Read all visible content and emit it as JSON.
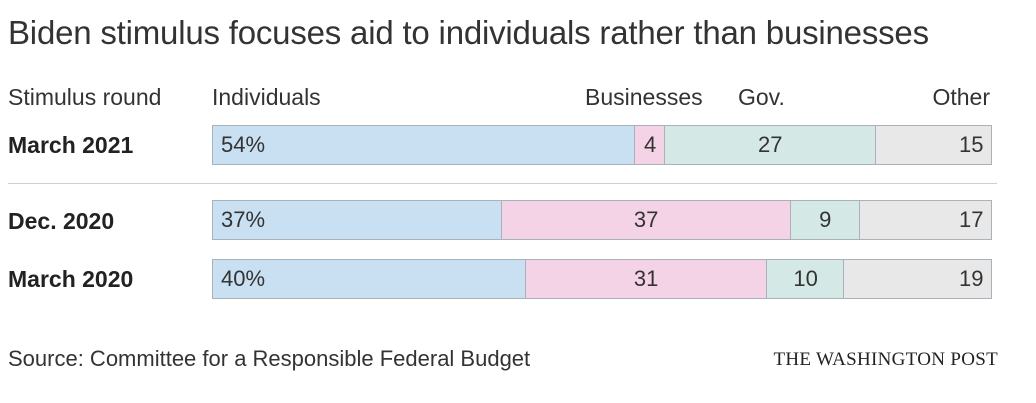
{
  "chart_data": {
    "type": "bar",
    "orientation": "horizontal",
    "stacked": true,
    "title": "Biden stimulus focuses aid to individuals rather than businesses",
    "row_header": "Stimulus round",
    "categories": [
      "March 2021",
      "Dec. 2020",
      "March 2020"
    ],
    "series": [
      {
        "name": "Individuals",
        "values": [
          54,
          37,
          40
        ],
        "labels": [
          "54%",
          "37%",
          "40%"
        ],
        "color": "#c9dff2"
      },
      {
        "name": "Businesses",
        "values": [
          4,
          37,
          31
        ],
        "labels": [
          "4",
          "37",
          "31"
        ],
        "color": "#f5d3e6"
      },
      {
        "name": "Gov.",
        "values": [
          27,
          9,
          10
        ],
        "labels": [
          "27",
          "9",
          "10"
        ],
        "color": "#d4e9e6"
      },
      {
        "name": "Other",
        "values": [
          15,
          17,
          19
        ],
        "labels": [
          "15",
          "17",
          "19"
        ],
        "color": "#e8e8e8"
      }
    ],
    "xlim": [
      0,
      100
    ],
    "source": "Source: Committee for a Responsible Federal Budget",
    "credit": "THE WASHINGTON POST"
  }
}
